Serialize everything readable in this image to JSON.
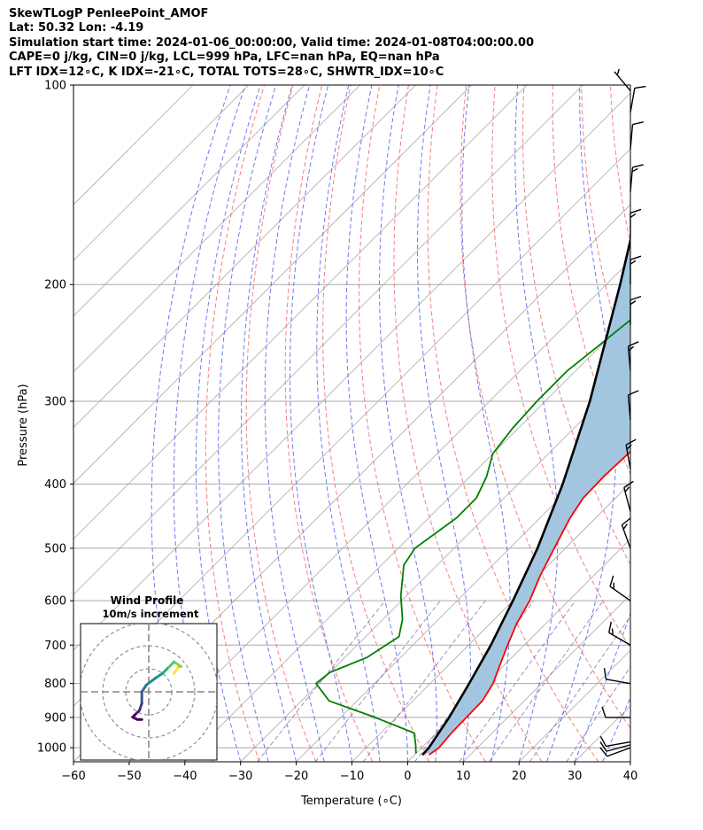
{
  "header": {
    "line1": "SkewTLogP PenleePoint_AMOF",
    "line2": "Lat: 50.32   Lon: -4.19",
    "line3": "Simulation start time: 2024-01-06_00:00:00, Valid time: 2024-01-08T04:00:00.00",
    "line4": "CAPE=0 j/kg, CIN=0 j/kg, LCL=999 hPa, LFC=nan hPa, EQ=nan hPa",
    "line5": "LFT IDX=12∘C, K IDX=-21∘C, TOTAL TOTS=28∘C, SHWTR_IDX=10∘C"
  },
  "chart_data": {
    "type": "line",
    "subtype": "skew-T log-P diagram",
    "xlabel": "Temperature (∘C)",
    "ylabel": "Pressure (hPa)",
    "xlim": [
      -60,
      40
    ],
    "ylim": [
      1050,
      100
    ],
    "y_scale": "log",
    "x_ticks": [
      "−60",
      "−50",
      "−40",
      "−30",
      "−20",
      "−10",
      "0",
      "10",
      "20",
      "30",
      "40"
    ],
    "y_ticks": [
      "100",
      "200",
      "300",
      "400",
      "500",
      "600",
      "700",
      "800",
      "900",
      "1000"
    ],
    "grid": true,
    "series": [
      {
        "role": "temperature",
        "color": "#ff0000",
        "points": [
          [
            2.6,
            1025
          ],
          [
            3.1,
            1000
          ],
          [
            2.7,
            950
          ],
          [
            2.6,
            900
          ],
          [
            2.5,
            850
          ],
          [
            1.3,
            800
          ],
          [
            -0.8,
            750
          ],
          [
            -3.0,
            700
          ],
          [
            -5.2,
            650
          ],
          [
            -7.0,
            600
          ],
          [
            -9.6,
            550
          ],
          [
            -12.0,
            500
          ],
          [
            -14.6,
            450
          ],
          [
            -15.8,
            420
          ],
          [
            -16.0,
            390
          ],
          [
            -15.7,
            360
          ],
          [
            -15.0,
            340
          ],
          [
            -14.0,
            310
          ],
          [
            -13.0,
            280
          ],
          [
            -12.5,
            250
          ],
          [
            -12.3,
            230
          ],
          [
            -12.8,
            210
          ],
          [
            -14.0,
            200
          ],
          [
            -15.5,
            180
          ],
          [
            -17.5,
            160
          ],
          [
            -20.5,
            140
          ],
          [
            -24.0,
            125
          ],
          [
            -27.5,
            115
          ],
          [
            -30.0,
            108
          ],
          [
            -32.0,
            100
          ]
        ]
      },
      {
        "role": "dewpoint",
        "color": "#008000",
        "points": [
          [
            0,
            1020
          ],
          [
            -1.6,
            990
          ],
          [
            -4.0,
            950
          ],
          [
            -13.8,
            900
          ],
          [
            -25.0,
            850
          ],
          [
            -30.5,
            800
          ],
          [
            -30.0,
            770
          ],
          [
            -26.0,
            730
          ],
          [
            -24.0,
            680
          ],
          [
            -26.5,
            640
          ],
          [
            -31.0,
            590
          ],
          [
            -36.0,
            530
          ],
          [
            -37.0,
            500
          ],
          [
            -35.0,
            450
          ],
          [
            -35.0,
            420
          ],
          [
            -37.0,
            390
          ],
          [
            -40.0,
            360
          ],
          [
            -41.0,
            330
          ],
          [
            -41.5,
            300
          ],
          [
            -41.5,
            270
          ],
          [
            -40.5,
            250
          ],
          [
            -39.5,
            230
          ],
          [
            -38.5,
            215
          ],
          [
            -38.0,
            200
          ],
          [
            -38.5,
            185
          ],
          [
            -40.0,
            170
          ],
          [
            -41.0,
            160
          ],
          [
            -39.5,
            145
          ],
          [
            -39.0,
            130
          ],
          [
            -38.5,
            115
          ],
          [
            -38.0,
            100
          ]
        ]
      },
      {
        "role": "parcel path",
        "color": "#000000",
        "points": [
          [
            1.4,
            1025
          ],
          [
            1.3,
            1000
          ],
          [
            -0.5,
            900
          ],
          [
            -3.0,
            800
          ],
          [
            -6.0,
            700
          ],
          [
            -10.0,
            600
          ],
          [
            -15.0,
            500
          ],
          [
            -22.0,
            400
          ],
          [
            -32.0,
            300
          ],
          [
            -47.5,
            200
          ],
          [
            -75.0,
            100
          ]
        ]
      }
    ],
    "fills": [
      {
        "between": "temperature and parcel path",
        "color": "#a2c6e0"
      }
    ],
    "reference_lines": {
      "isotherms_color": "#a9a9a9",
      "dry_adiabats_color": "#f06060",
      "moist_adiabats_color": "#4a5ae8",
      "mixing_ratio_color": "#6a3d9a"
    },
    "wind_barbs": [
      {
        "p": 1000,
        "speed_kt": 12,
        "dir_deg": 250
      },
      {
        "p": 990,
        "speed_kt": 12,
        "dir_deg": 255
      },
      {
        "p": 980,
        "speed_kt": 12,
        "dir_deg": 260
      },
      {
        "p": 900,
        "speed_kt": 10,
        "dir_deg": 270
      },
      {
        "p": 800,
        "speed_kt": 10,
        "dir_deg": 280
      },
      {
        "p": 700,
        "speed_kt": 15,
        "dir_deg": 300
      },
      {
        "p": 600,
        "speed_kt": 15,
        "dir_deg": 305
      },
      {
        "p": 500,
        "speed_kt": 15,
        "dir_deg": 340
      },
      {
        "p": 440,
        "speed_kt": 15,
        "dir_deg": 345
      },
      {
        "p": 380,
        "speed_kt": 15,
        "dir_deg": 350
      },
      {
        "p": 320,
        "speed_kt": 10,
        "dir_deg": 355
      },
      {
        "p": 270,
        "speed_kt": 15,
        "dir_deg": 355
      },
      {
        "p": 230,
        "speed_kt": 15,
        "dir_deg": 0
      },
      {
        "p": 200,
        "speed_kt": 15,
        "dir_deg": 0
      },
      {
        "p": 170,
        "speed_kt": 15,
        "dir_deg": 0
      },
      {
        "p": 145,
        "speed_kt": 15,
        "dir_deg": 5
      },
      {
        "p": 125,
        "speed_kt": 10,
        "dir_deg": 5
      },
      {
        "p": 110,
        "speed_kt": 10,
        "dir_deg": 10
      },
      {
        "p": 102,
        "speed_kt": 5,
        "dir_deg": 320
      }
    ],
    "inset": {
      "title": "Wind Profile",
      "subtitle": "10m/s increment",
      "rings_ms": [
        10,
        20,
        30
      ],
      "hodograph_uv_ms": [
        [
          11,
          -8
        ],
        [
          13,
          -11
        ],
        [
          14,
          -11
        ],
        [
          11,
          -13
        ],
        [
          8,
          -10
        ],
        [
          6,
          -8
        ],
        [
          3,
          -6
        ],
        [
          -1,
          -3
        ],
        [
          -3,
          0
        ],
        [
          -3,
          5
        ],
        [
          -4,
          8
        ],
        [
          -6,
          10
        ],
        [
          -7,
          11
        ],
        [
          -5,
          12
        ],
        [
          -3,
          12
        ]
      ]
    }
  }
}
